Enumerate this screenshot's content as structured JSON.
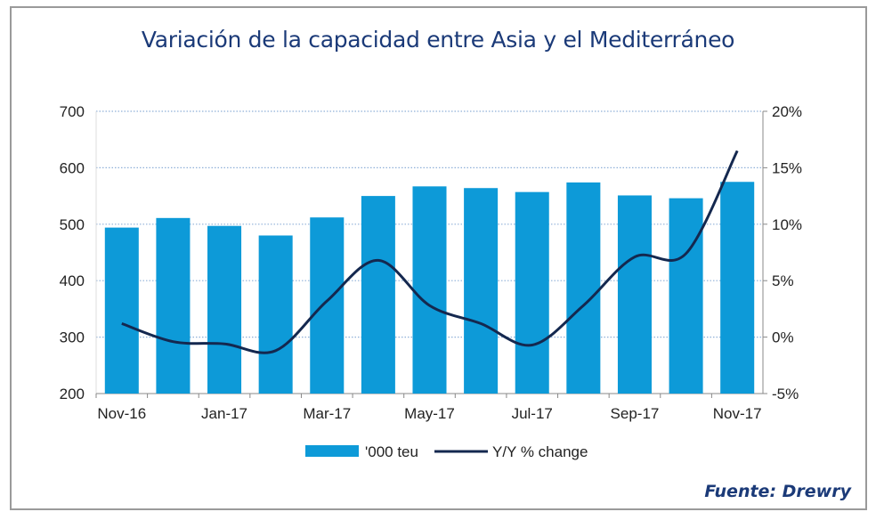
{
  "chart_data": {
    "type": "bar+line",
    "title": "Variación de la capacidad entre Asia y el Mediterráneo",
    "categories": [
      "Nov-16",
      "Dec-16",
      "Jan-17",
      "Feb-17",
      "Mar-17",
      "Apr-17",
      "May-17",
      "Jun-17",
      "Jul-17",
      "Aug-17",
      "Sep-17",
      "Oct-17",
      "Nov-17"
    ],
    "x_tick_labels": [
      "Nov-16",
      "Jan-17",
      "Mar-17",
      "May-17",
      "Jul-17",
      "Sep-17",
      "Nov-17"
    ],
    "series": [
      {
        "name": "'000 teu",
        "type": "bar",
        "axis": "left",
        "color": "#0d9ad8",
        "values": [
          494,
          511,
          497,
          480,
          512,
          550,
          567,
          564,
          557,
          574,
          551,
          546,
          575
        ]
      },
      {
        "name": "Y/Y % change",
        "type": "line",
        "axis": "right",
        "color": "#14284f",
        "values": [
          1.2,
          -0.4,
          -0.6,
          -1.2,
          3.2,
          6.8,
          2.8,
          1.2,
          -0.7,
          2.8,
          7.1,
          7.4,
          16.5
        ]
      }
    ],
    "left_axis": {
      "ylim": [
        200,
        700
      ],
      "ticks": [
        "200",
        "300",
        "400",
        "500",
        "600",
        "700"
      ]
    },
    "right_axis": {
      "ylim": [
        -5,
        20
      ],
      "ticks": [
        "-5%",
        "0%",
        "5%",
        "10%",
        "15%",
        "20%"
      ]
    },
    "grid": "horizontal dotted",
    "legend": "bottom"
  },
  "source": "Fuente: Drewry"
}
